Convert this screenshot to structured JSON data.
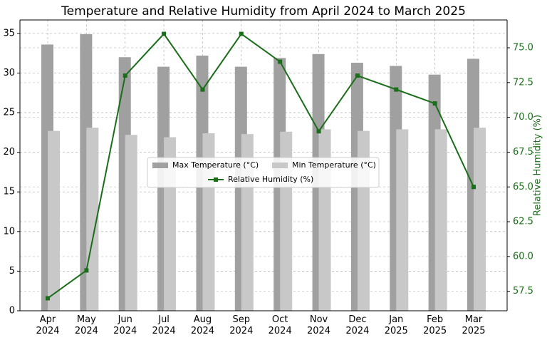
{
  "chart_data": {
    "type": "bar_line",
    "title": "Temperature and Relative Humidity from April 2024 to March 2025",
    "y2_label": "Relative Humidity (%)",
    "categories": [
      "Apr 2024",
      "May 2024",
      "Jun 2024",
      "Jul 2024",
      "Aug 2024",
      "Sep 2024",
      "Oct 2024",
      "Nov 2024",
      "Dec 2024",
      "Jan 2025",
      "Feb 2025",
      "Mar 2025"
    ],
    "series": [
      {
        "name": "Max Temperature (°C)",
        "color": "#a0a0a0",
        "type": "bar",
        "values": [
          33.6,
          34.9,
          32.0,
          30.8,
          32.2,
          30.8,
          31.9,
          32.4,
          31.3,
          30.9,
          29.8,
          31.8
        ]
      },
      {
        "name": "Min Temperature (°C)",
        "color": "#c8c8c8",
        "type": "bar",
        "values": [
          22.7,
          23.1,
          22.2,
          21.9,
          22.4,
          22.3,
          22.6,
          22.9,
          22.7,
          22.9,
          22.9,
          23.1
        ]
      },
      {
        "name": "Relative Humidity (%)",
        "color": "#1a6e1a",
        "type": "line",
        "axis": "y2",
        "values": [
          57,
          59,
          73,
          76,
          72,
          76,
          74,
          69,
          73,
          72,
          71,
          65
        ]
      }
    ],
    "ylim": [
      0,
      36.7
    ],
    "yticks": [
      0,
      5,
      10,
      15,
      20,
      25,
      30,
      35
    ],
    "y2lim": [
      56.1,
      77.0
    ],
    "y2ticks": [
      57.5,
      {
        "value": 60,
        "label": "60.0"
      },
      62.5,
      {
        "value": 65,
        "label": "65.0"
      },
      67.5,
      {
        "value": 70,
        "label": "70.0"
      },
      72.5,
      {
        "value": 75,
        "label": "75.0"
      }
    ],
    "grid": true
  }
}
